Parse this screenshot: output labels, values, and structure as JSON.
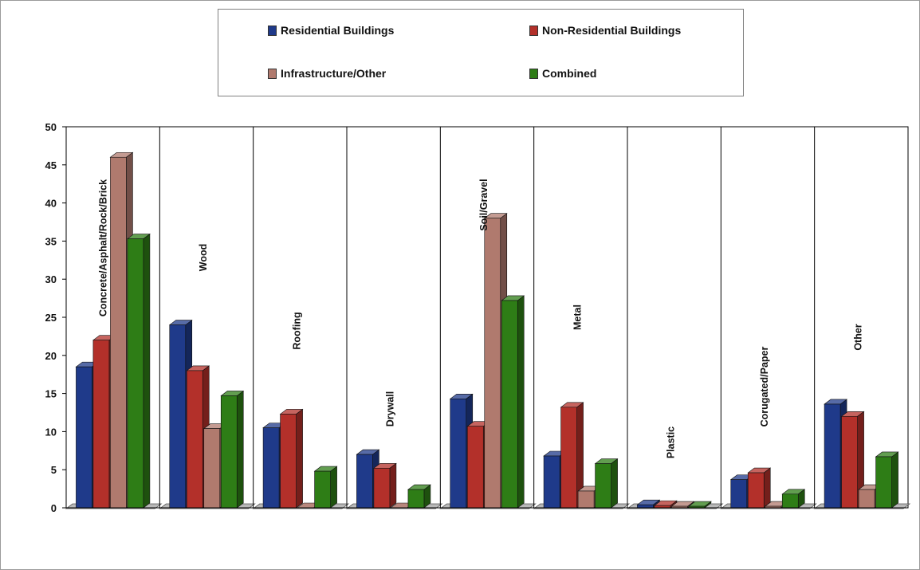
{
  "colors": {
    "residential": "#1f3a8a",
    "non_residential": "#b3302a",
    "infrastructure": "#b07a6e",
    "combined": "#2e7d16"
  },
  "chart_data": {
    "type": "bar",
    "categories": [
      "Concrete/Asphalt/Rock/Brick",
      "Wood",
      "Roofing",
      "Drywall",
      "Soil/Gravel",
      "Metal",
      "Plastic",
      "Corugated/Paper",
      "Other"
    ],
    "series": [
      {
        "name": "Residential Buildings",
        "color": "#1f3a8a",
        "values": [
          18.5,
          24,
          10.5,
          7,
          14.3,
          6.8,
          0.4,
          3.7,
          13.6
        ]
      },
      {
        "name": "Non-Residential Buildings",
        "color": "#b3302a",
        "values": [
          22,
          18,
          12.3,
          5.2,
          10.7,
          13.2,
          0.3,
          4.6,
          12
        ]
      },
      {
        "name": "Infrastructure/Other",
        "color": "#b07a6e",
        "values": [
          46,
          10.4,
          0,
          0,
          38,
          2.2,
          0.2,
          0.2,
          2.4
        ]
      },
      {
        "name": "Combined",
        "color": "#2e7d16",
        "values": [
          35.3,
          14.7,
          4.8,
          2.4,
          27.2,
          5.8,
          0.2,
          1.8,
          6.7
        ]
      }
    ],
    "ylim": [
      0,
      50
    ],
    "yticks": [
      0,
      5,
      10,
      15,
      20,
      25,
      30,
      35,
      40,
      45,
      50
    ],
    "legend_position": "top",
    "grid": false
  }
}
